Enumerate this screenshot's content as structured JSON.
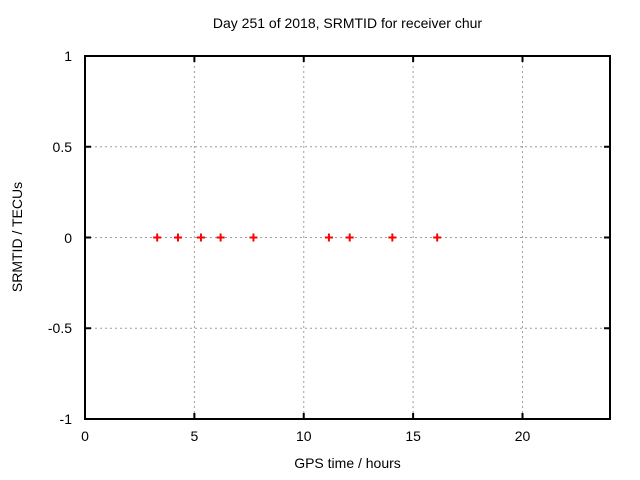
{
  "figure": {
    "background": "#ffffff",
    "text_color": "#000000"
  },
  "chart_data": {
    "type": "scatter",
    "title": "Day 251 of 2018, SRMTID for receiver chur",
    "xlabel": "GPS time / hours",
    "ylabel": "SRMTID / TECUs",
    "xlim": [
      0,
      24
    ],
    "ylim": [
      -1,
      1
    ],
    "xticks": {
      "values": [
        0,
        5,
        10,
        15,
        20
      ],
      "labels": [
        "0",
        "5",
        "10",
        "15",
        "20"
      ]
    },
    "yticks": {
      "values": [
        -1,
        -0.5,
        0,
        0.5,
        1
      ],
      "labels": [
        "-1",
        "-0.5",
        "0",
        "0.5",
        "1"
      ]
    },
    "grid": true,
    "grid_color": "#9e9e9e",
    "border_color": "#000000",
    "legend": "none",
    "series": [
      {
        "marker": "plus",
        "color": "#ff0000",
        "points": [
          {
            "x": 3.3,
            "y": 0
          },
          {
            "x": 4.25,
            "y": 0
          },
          {
            "x": 5.3,
            "y": 0
          },
          {
            "x": 6.2,
            "y": 0
          },
          {
            "x": 7.7,
            "y": 0
          },
          {
            "x": 11.15,
            "y": 0
          },
          {
            "x": 12.1,
            "y": 0
          },
          {
            "x": 14.05,
            "y": 0
          },
          {
            "x": 16.1,
            "y": 0
          }
        ]
      }
    ]
  }
}
